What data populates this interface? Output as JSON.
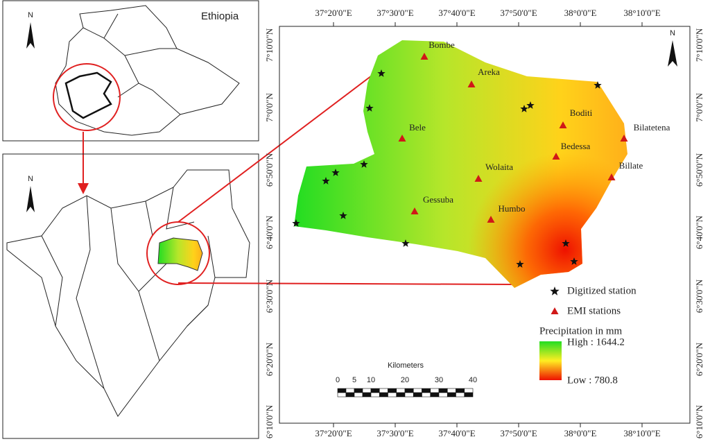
{
  "inset_top": {
    "label": "Ethiopia",
    "north": "N"
  },
  "inset_bottom": {
    "north": "N"
  },
  "main_map": {
    "north": "N",
    "lon_labels": [
      "37°20'0\"E",
      "37°30'0\"E",
      "37°40'0\"E",
      "37°50'0\"E",
      "38°0'0\"E",
      "38°10'0\"E"
    ],
    "lat_labels": [
      "7°10'0\"N",
      "7°0'0\"N",
      "6°50'0\"N",
      "6°40'0\"N",
      "6°30'0\"N",
      "6°20'0\"N",
      "6°10'0\"N"
    ],
    "stations": [
      {
        "name": "Bombe"
      },
      {
        "name": "Areka"
      },
      {
        "name": "Boditi"
      },
      {
        "name": "Bilatetena"
      },
      {
        "name": "Bele"
      },
      {
        "name": "Bedessa"
      },
      {
        "name": "Wolaita"
      },
      {
        "name": "Billate"
      },
      {
        "name": "Gessuba"
      },
      {
        "name": "Humbo"
      }
    ]
  },
  "legend": {
    "digitized": "Digitized station",
    "emi": "EMI stations",
    "title": "Precipitation in mm",
    "high": "High : 1644.2",
    "low": "Low : 780.8"
  },
  "scale_bar": {
    "title": "Kilometers",
    "labels": [
      "0",
      "5",
      "10",
      "20",
      "30",
      "40"
    ]
  }
}
